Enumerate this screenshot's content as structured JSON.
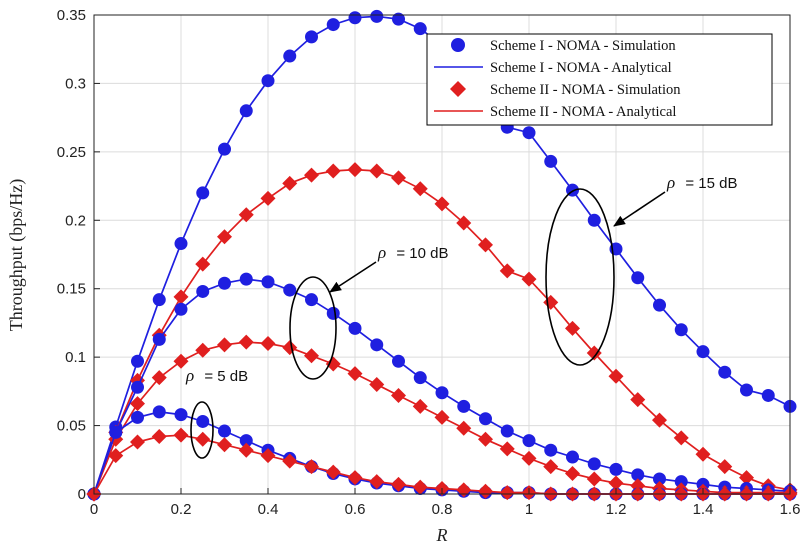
{
  "chart_data": {
    "type": "line",
    "xlabel": "R",
    "ylabel": "Throughput (bps/Hz)",
    "xlim": [
      0,
      1.6
    ],
    "ylim": [
      0,
      0.35
    ],
    "xticks": [
      "0",
      "0.2",
      "0.4",
      "0.6",
      "0.8",
      "1",
      "1.2",
      "1.4",
      "1.6"
    ],
    "yticks": [
      "0",
      "0.05",
      "0.1",
      "0.15",
      "0.2",
      "0.25",
      "0.3",
      "0.35"
    ],
    "grid": true,
    "legend_position": "top-right",
    "x": [
      0,
      0.05,
      0.1,
      0.15,
      0.2,
      0.25,
      0.3,
      0.35,
      0.4,
      0.45,
      0.5,
      0.55,
      0.6,
      0.65,
      0.7,
      0.75,
      0.8,
      0.85,
      0.9,
      0.95,
      1.0,
      1.05,
      1.1,
      1.15,
      1.2,
      1.25,
      1.3,
      1.35,
      1.4,
      1.45,
      1.5,
      1.55,
      1.6
    ],
    "series": [
      {
        "name": "Scheme I - NOMA - Simulation / Analytical",
        "scheme": "I",
        "rho": "15 dB",
        "color": "#1f1fe0",
        "values": [
          0,
          0.049,
          0.097,
          0.142,
          0.183,
          0.22,
          0.252,
          0.28,
          0.302,
          0.32,
          0.334,
          0.343,
          0.348,
          0.349,
          0.347,
          0.34,
          0.328,
          0.312,
          0.292,
          0.268,
          0.264,
          0.243,
          0.222,
          0.2,
          0.179,
          0.158,
          0.138,
          0.12,
          0.104,
          0.089,
          0.076,
          0.072,
          0.064
        ]
      },
      {
        "name": "Scheme II - NOMA - Simulation / Analytical",
        "scheme": "II",
        "rho": "15 dB",
        "color": "#e01f1f",
        "values": [
          0,
          0.045,
          0.083,
          0.116,
          0.144,
          0.168,
          0.188,
          0.204,
          0.216,
          0.227,
          0.233,
          0.236,
          0.237,
          0.236,
          0.231,
          0.223,
          0.212,
          0.198,
          0.182,
          0.163,
          0.157,
          0.14,
          0.121,
          0.103,
          0.086,
          0.069,
          0.054,
          0.041,
          0.029,
          0.02,
          0.012,
          0.006,
          0.003
        ]
      },
      {
        "name": "Scheme I - NOMA - Simulation / Analytical",
        "scheme": "I",
        "rho": "10 dB",
        "color": "#1f1fe0",
        "values": [
          0,
          0.045,
          0.078,
          0.113,
          0.135,
          0.148,
          0.154,
          0.157,
          0.155,
          0.149,
          0.142,
          0.132,
          0.121,
          0.109,
          0.097,
          0.085,
          0.074,
          0.064,
          0.055,
          0.046,
          0.039,
          0.032,
          0.027,
          0.022,
          0.018,
          0.014,
          0.011,
          0.009,
          0.007,
          0.005,
          0.004,
          0.003,
          0.002
        ]
      },
      {
        "name": "Scheme II - NOMA - Simulation / Analytical",
        "scheme": "II",
        "rho": "10 dB",
        "color": "#e01f1f",
        "values": [
          0,
          0.04,
          0.066,
          0.085,
          0.097,
          0.105,
          0.109,
          0.111,
          0.11,
          0.107,
          0.101,
          0.095,
          0.088,
          0.08,
          0.072,
          0.064,
          0.056,
          0.048,
          0.04,
          0.033,
          0.026,
          0.02,
          0.015,
          0.011,
          0.008,
          0.006,
          0.004,
          0.003,
          0.002,
          0.001,
          0.001,
          0.001,
          0.001
        ]
      },
      {
        "name": "Scheme I - NOMA - Simulation / Analytical",
        "scheme": "I",
        "rho": "5 dB",
        "color": "#1f1fe0",
        "values": [
          0,
          0.045,
          0.056,
          0.06,
          0.058,
          0.053,
          0.046,
          0.039,
          0.032,
          0.026,
          0.02,
          0.015,
          0.011,
          0.008,
          0.006,
          0.004,
          0.003,
          0.002,
          0.001,
          0.001,
          0.001,
          0.0,
          0.0,
          0.0,
          0.0,
          0.0,
          0.0,
          0.0,
          0.0,
          0.0,
          0.0,
          0.0,
          0.0
        ]
      },
      {
        "name": "Scheme II - NOMA - Simulation / Analytical",
        "scheme": "II",
        "rho": "5 dB",
        "color": "#e01f1f",
        "values": [
          0,
          0.028,
          0.038,
          0.042,
          0.043,
          0.04,
          0.036,
          0.032,
          0.028,
          0.024,
          0.02,
          0.016,
          0.012,
          0.009,
          0.007,
          0.005,
          0.004,
          0.003,
          0.002,
          0.001,
          0.001,
          0.0,
          0.0,
          0.0,
          0.0,
          0.0,
          0.0,
          0.0,
          0.0,
          0.0,
          0.0,
          0.0,
          0.0
        ]
      }
    ],
    "legend": [
      {
        "label": "Scheme I - NOMA - Simulation",
        "marker": "circle",
        "color": "#1f1fe0"
      },
      {
        "label": "Scheme I - NOMA - Analytical",
        "marker": "line",
        "color": "#1f1fe0"
      },
      {
        "label": "Scheme II - NOMA - Simulation",
        "marker": "diamond",
        "color": "#e01f1f"
      },
      {
        "label": "Scheme II - NOMA - Analytical",
        "marker": "line",
        "color": "#e01f1f"
      }
    ],
    "annotations": [
      {
        "rho_symbol": "ρ",
        "text": "= 15 dB"
      },
      {
        "rho_symbol": "ρ",
        "text": "= 10 dB"
      },
      {
        "rho_symbol": "ρ",
        "text": "= 5 dB"
      }
    ]
  }
}
